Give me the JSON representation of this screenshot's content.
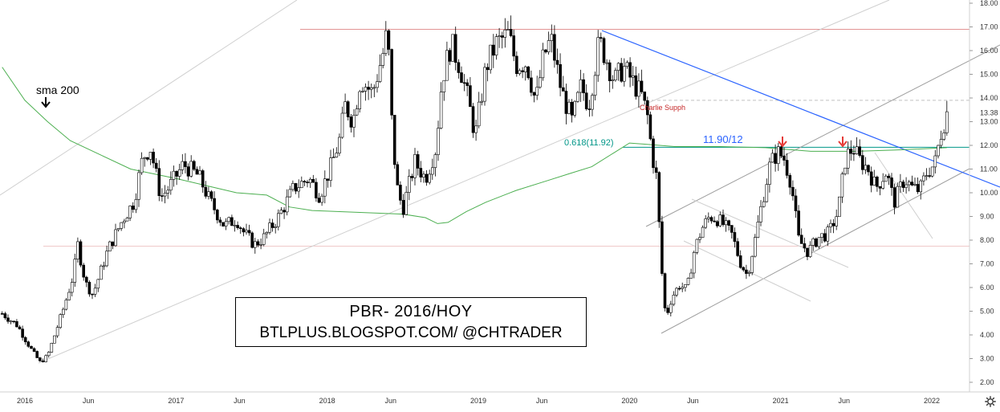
{
  "chart_data": {
    "type": "candlestick",
    "title": "PBR- 2016/HOY",
    "subtitle": "BTLPLUS.BLOGSPOT.COM/ @CHTRADER",
    "ylim": [
      1.5,
      18.1
    ],
    "yticks": [
      "2.00",
      "3.00",
      "4.00",
      "5.00",
      "6.00",
      "7.00",
      "8.00",
      "9.00",
      "10.00",
      "11.00",
      "12.00",
      "13.00",
      "14.00",
      "15.00",
      "16.00",
      "17.00",
      "18.00"
    ],
    "price_badge": "13.38",
    "xticks": [
      {
        "label": "2016",
        "t": 2016.0
      },
      {
        "label": "Jun",
        "t": 2016.42
      },
      {
        "label": "2017",
        "t": 2017.0
      },
      {
        "label": "Jun",
        "t": 2017.42
      },
      {
        "label": "2018",
        "t": 2018.0
      },
      {
        "label": "Jun",
        "t": 2018.42
      },
      {
        "label": "2019",
        "t": 2019.0
      },
      {
        "label": "Jun",
        "t": 2019.42
      },
      {
        "label": "2020",
        "t": 2020.0
      },
      {
        "label": "Jun",
        "t": 2020.42
      },
      {
        "label": "2021",
        "t": 2021.0
      },
      {
        "label": "Jun",
        "t": 2021.42
      },
      {
        "label": "2022",
        "t": 2022.0
      }
    ],
    "price_path": [
      [
        2015.85,
        4.9
      ],
      [
        2015.95,
        4.4
      ],
      [
        2016.05,
        3.3
      ],
      [
        2016.1,
        2.85
      ],
      [
        2016.15,
        3.1
      ],
      [
        2016.25,
        5.0
      ],
      [
        2016.32,
        6.5
      ],
      [
        2016.35,
        7.8
      ],
      [
        2016.4,
        6.2
      ],
      [
        2016.45,
        5.7
      ],
      [
        2016.55,
        7.6
      ],
      [
        2016.65,
        8.9
      ],
      [
        2016.72,
        9.6
      ],
      [
        2016.78,
        11.5
      ],
      [
        2016.83,
        11.9
      ],
      [
        2016.9,
        9.8
      ],
      [
        2016.95,
        10.2
      ],
      [
        2017.05,
        11.2
      ],
      [
        2017.15,
        10.7
      ],
      [
        2017.22,
        9.7
      ],
      [
        2017.32,
        8.6
      ],
      [
        2017.4,
        8.9
      ],
      [
        2017.45,
        8.3
      ],
      [
        2017.52,
        7.8
      ],
      [
        2017.58,
        8.1
      ],
      [
        2017.68,
        9.0
      ],
      [
        2017.78,
        10.2
      ],
      [
        2017.88,
        10.6
      ],
      [
        2017.95,
        9.9
      ],
      [
        2018.03,
        11.2
      ],
      [
        2018.08,
        12.2
      ],
      [
        2018.12,
        13.7
      ],
      [
        2018.17,
        13.0
      ],
      [
        2018.22,
        14.8
      ],
      [
        2018.3,
        14.2
      ],
      [
        2018.37,
        15.9
      ],
      [
        2018.4,
        16.9
      ],
      [
        2018.43,
        12.6
      ],
      [
        2018.46,
        10.3
      ],
      [
        2018.5,
        9.3
      ],
      [
        2018.58,
        11.3
      ],
      [
        2018.65,
        10.6
      ],
      [
        2018.72,
        11.9
      ],
      [
        2018.76,
        14.8
      ],
      [
        2018.82,
        16.3
      ],
      [
        2018.88,
        15.3
      ],
      [
        2018.93,
        14.0
      ],
      [
        2018.98,
        12.4
      ],
      [
        2019.05,
        15.3
      ],
      [
        2019.12,
        16.3
      ],
      [
        2019.2,
        16.7
      ],
      [
        2019.25,
        15.4
      ],
      [
        2019.32,
        15.5
      ],
      [
        2019.38,
        13.8
      ],
      [
        2019.43,
        15.7
      ],
      [
        2019.48,
        16.5
      ],
      [
        2019.55,
        14.3
      ],
      [
        2019.62,
        13.0
      ],
      [
        2019.68,
        14.5
      ],
      [
        2019.73,
        13.7
      ],
      [
        2019.8,
        16.4
      ],
      [
        2019.85,
        15.6
      ],
      [
        2019.9,
        14.7
      ],
      [
        2019.96,
        15.3
      ],
      [
        2020.03,
        14.6
      ],
      [
        2020.08,
        14.1
      ],
      [
        2020.12,
        13.2
      ],
      [
        2020.15,
        11.6
      ],
      [
        2020.18,
        10.6
      ],
      [
        2020.21,
        7.0
      ],
      [
        2020.24,
        4.7
      ],
      [
        2020.28,
        5.6
      ],
      [
        2020.33,
        6.1
      ],
      [
        2020.38,
        5.9
      ],
      [
        2020.43,
        7.6
      ],
      [
        2020.48,
        8.5
      ],
      [
        2020.53,
        9.0
      ],
      [
        2020.58,
        8.9
      ],
      [
        2020.63,
        8.6
      ],
      [
        2020.68,
        8.2
      ],
      [
        2020.73,
        7.1
      ],
      [
        2020.78,
        6.5
      ],
      [
        2020.83,
        8.0
      ],
      [
        2020.88,
        9.7
      ],
      [
        2020.93,
        11.2
      ],
      [
        2020.98,
        11.7
      ],
      [
        2021.02,
        11.5
      ],
      [
        2021.07,
        10.4
      ],
      [
        2021.12,
        8.0
      ],
      [
        2021.18,
        7.5
      ],
      [
        2021.25,
        8.1
      ],
      [
        2021.32,
        8.3
      ],
      [
        2021.38,
        9.2
      ],
      [
        2021.43,
        11.5
      ],
      [
        2021.48,
        11.9
      ],
      [
        2021.52,
        11.4
      ],
      [
        2021.58,
        11.0
      ],
      [
        2021.63,
        10.2
      ],
      [
        2021.7,
        10.9
      ],
      [
        2021.75,
        9.6
      ],
      [
        2021.82,
        10.6
      ],
      [
        2021.87,
        10.2
      ],
      [
        2021.92,
        10.1
      ],
      [
        2021.97,
        10.9
      ],
      [
        2022.02,
        11.2
      ],
      [
        2022.06,
        12.5
      ],
      [
        2022.1,
        13.4
      ]
    ],
    "sma200_path": [
      [
        2015.85,
        15.3
      ],
      [
        2016.0,
        13.9
      ],
      [
        2016.15,
        13.0
      ],
      [
        2016.3,
        12.2
      ],
      [
        2016.5,
        11.6
      ],
      [
        2016.7,
        11.0
      ],
      [
        2016.85,
        10.8
      ],
      [
        2017.0,
        10.6
      ],
      [
        2017.2,
        10.3
      ],
      [
        2017.4,
        10.0
      ],
      [
        2017.6,
        9.9
      ],
      [
        2017.75,
        9.4
      ],
      [
        2017.9,
        9.25
      ],
      [
        2018.1,
        9.2
      ],
      [
        2018.3,
        9.15
      ],
      [
        2018.5,
        9.1
      ],
      [
        2018.65,
        8.95
      ],
      [
        2018.73,
        8.7
      ],
      [
        2018.8,
        8.75
      ],
      [
        2018.92,
        9.2
      ],
      [
        2019.05,
        9.6
      ],
      [
        2019.25,
        10.1
      ],
      [
        2019.45,
        10.5
      ],
      [
        2019.6,
        10.8
      ],
      [
        2019.75,
        11.1
      ],
      [
        2019.9,
        11.7
      ],
      [
        2020.0,
        12.1
      ],
      [
        2020.1,
        12.05
      ],
      [
        2020.3,
        11.95
      ],
      [
        2020.6,
        11.95
      ],
      [
        2020.9,
        11.9
      ],
      [
        2021.2,
        11.75
      ],
      [
        2021.5,
        11.75
      ],
      [
        2021.75,
        11.8
      ],
      [
        2022.1,
        11.9
      ]
    ],
    "annotations": {
      "sma_label": "sma 200",
      "support_label": "Charlie Supph",
      "fib_label": "0.618(11.92)",
      "level_label": "11.90/12"
    },
    "colors": {
      "up": "#ffffff",
      "down": "#000000",
      "sma": "#4caf50",
      "downtrend": "#2962ff",
      "channel": "#9e9e9e",
      "resistance": "#c62828",
      "fib": "#009688",
      "arrow": "#e53935"
    }
  }
}
